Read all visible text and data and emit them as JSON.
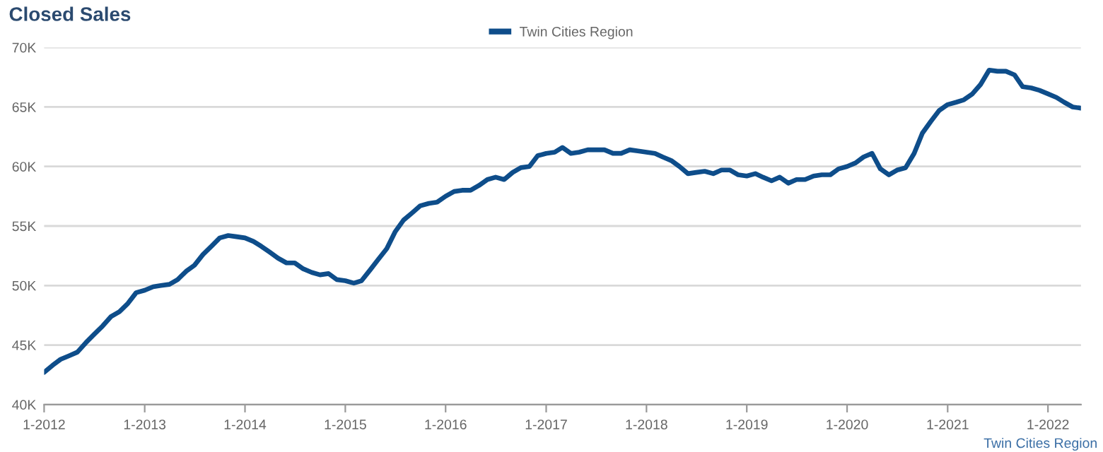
{
  "chart_data": {
    "type": "line",
    "title": "Closed Sales",
    "x": [
      "2012-01",
      "2012-02",
      "2012-03",
      "2012-04",
      "2012-05",
      "2012-06",
      "2012-07",
      "2012-08",
      "2012-09",
      "2012-10",
      "2012-11",
      "2012-12",
      "2013-01",
      "2013-02",
      "2013-03",
      "2013-04",
      "2013-05",
      "2013-06",
      "2013-07",
      "2013-08",
      "2013-09",
      "2013-10",
      "2013-11",
      "2013-12",
      "2014-01",
      "2014-02",
      "2014-03",
      "2014-04",
      "2014-05",
      "2014-06",
      "2014-07",
      "2014-08",
      "2014-09",
      "2014-10",
      "2014-11",
      "2014-12",
      "2015-01",
      "2015-02",
      "2015-03",
      "2015-04",
      "2015-05",
      "2015-06",
      "2015-07",
      "2015-08",
      "2015-09",
      "2015-10",
      "2015-11",
      "2015-12",
      "2016-01",
      "2016-02",
      "2016-03",
      "2016-04",
      "2016-05",
      "2016-06",
      "2016-07",
      "2016-08",
      "2016-09",
      "2016-10",
      "2016-11",
      "2016-12",
      "2017-01",
      "2017-02",
      "2017-03",
      "2017-04",
      "2017-05",
      "2017-06",
      "2017-07",
      "2017-08",
      "2017-09",
      "2017-10",
      "2017-11",
      "2017-12",
      "2018-01",
      "2018-02",
      "2018-03",
      "2018-04",
      "2018-05",
      "2018-06",
      "2018-07",
      "2018-08",
      "2018-09",
      "2018-10",
      "2018-11",
      "2018-12",
      "2019-01",
      "2019-02",
      "2019-03",
      "2019-04",
      "2019-05",
      "2019-06",
      "2019-07",
      "2019-08",
      "2019-09",
      "2019-10",
      "2019-11",
      "2019-12",
      "2020-01",
      "2020-02",
      "2020-03",
      "2020-04",
      "2020-05",
      "2020-06",
      "2020-07",
      "2020-08",
      "2020-09",
      "2020-10",
      "2020-11",
      "2020-12",
      "2021-01",
      "2021-02",
      "2021-03",
      "2021-04",
      "2021-05",
      "2021-06",
      "2021-07",
      "2021-08",
      "2021-09",
      "2021-10",
      "2021-11",
      "2021-12",
      "2022-01",
      "2022-02",
      "2022-03",
      "2022-04",
      "2022-05"
    ],
    "series": [
      {
        "name": "Twin Cities Region",
        "color": "#0e4d8a",
        "values": [
          42700,
          43300,
          43800,
          44100,
          44400,
          45200,
          45900,
          46600,
          47400,
          47800,
          48500,
          49400,
          49600,
          49900,
          50000,
          50100,
          50500,
          51200,
          51700,
          52600,
          53300,
          54000,
          54200,
          54100,
          54000,
          53700,
          53300,
          52800,
          52300,
          51900,
          51900,
          51400,
          51100,
          50900,
          51000,
          50500,
          50400,
          50200,
          50400,
          51300,
          52200,
          53100,
          54500,
          55500,
          56100,
          56700,
          56900,
          57000,
          57500,
          57900,
          58000,
          58000,
          58400,
          58900,
          59100,
          58900,
          59500,
          59900,
          60000,
          60900,
          61100,
          61200,
          61600,
          61100,
          61200,
          61400,
          61400,
          61400,
          61100,
          61100,
          61400,
          61300,
          61200,
          61100,
          60800,
          60500,
          60000,
          59400,
          59500,
          59600,
          59400,
          59700,
          59700,
          59300,
          59200,
          59400,
          59100,
          58800,
          59100,
          58600,
          58900,
          58900,
          59200,
          59300,
          59300,
          59800,
          60000,
          60300,
          60800,
          61100,
          59800,
          59300,
          59700,
          59900,
          61100,
          62800,
          63800,
          64700,
          65200,
          65400,
          65600,
          66100,
          66900,
          68100,
          68000,
          68000,
          67700,
          66700,
          66600,
          66400,
          66100,
          65800,
          65400,
          65000,
          64900
        ]
      }
    ],
    "xlim": [
      "2012-01",
      "2022-05"
    ],
    "xticks": [
      {
        "value": "2012-01",
        "label": "1-2012"
      },
      {
        "value": "2013-01",
        "label": "1-2013"
      },
      {
        "value": "2014-01",
        "label": "1-2014"
      },
      {
        "value": "2015-01",
        "label": "1-2015"
      },
      {
        "value": "2016-01",
        "label": "1-2016"
      },
      {
        "value": "2017-01",
        "label": "1-2017"
      },
      {
        "value": "2018-01",
        "label": "1-2018"
      },
      {
        "value": "2019-01",
        "label": "1-2019"
      },
      {
        "value": "2020-01",
        "label": "1-2020"
      },
      {
        "value": "2021-01",
        "label": "1-2021"
      },
      {
        "value": "2022-01",
        "label": "1-2022"
      }
    ],
    "ylim": [
      40000,
      70000
    ],
    "yticks": [
      {
        "value": 40000,
        "label": "40K"
      },
      {
        "value": 45000,
        "label": "45K"
      },
      {
        "value": 50000,
        "label": "50K"
      },
      {
        "value": 55000,
        "label": "55K"
      },
      {
        "value": 60000,
        "label": "60K"
      },
      {
        "value": 65000,
        "label": "65K"
      },
      {
        "value": 70000,
        "label": "70K"
      }
    ],
    "grid": "y",
    "legend": "top",
    "marker": "none",
    "line_style": "solid",
    "annotations": [
      "Twin Cities Region"
    ]
  }
}
